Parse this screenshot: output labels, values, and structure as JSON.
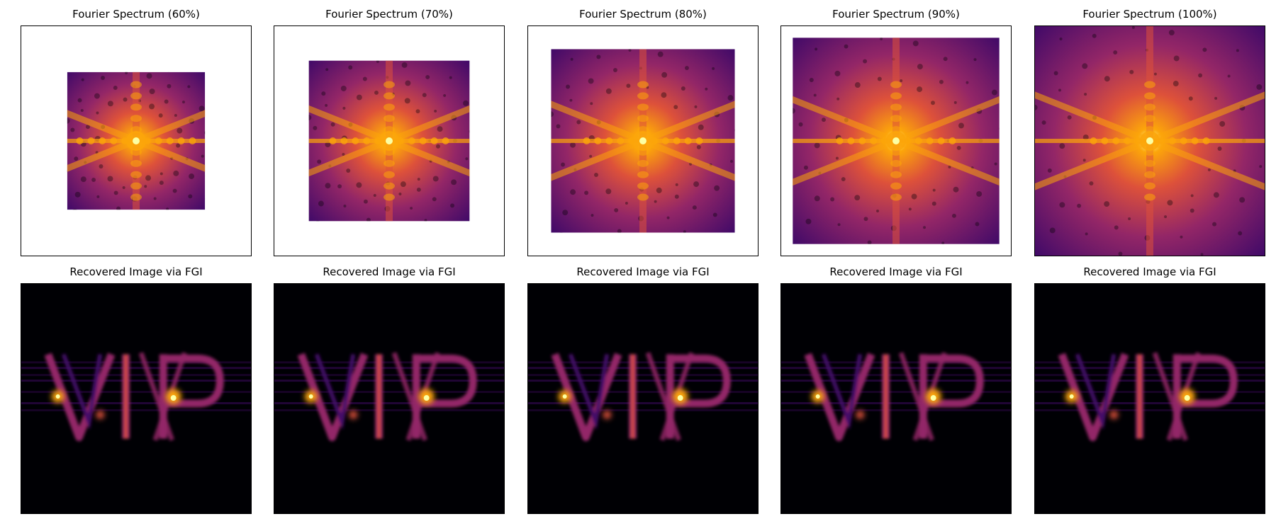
{
  "figure": {
    "columns": [
      {
        "spectrum": {
          "title": "Fourier Spectrum (60%)",
          "fraction": 0.6
        },
        "recovered": {
          "title": "Recovered Image via FGI"
        }
      },
      {
        "spectrum": {
          "title": "Fourier Spectrum (70%)",
          "fraction": 0.7
        },
        "recovered": {
          "title": "Recovered Image via FGI"
        }
      },
      {
        "spectrum": {
          "title": "Fourier Spectrum (80%)",
          "fraction": 0.8
        },
        "recovered": {
          "title": "Recovered Image via FGI"
        }
      },
      {
        "spectrum": {
          "title": "Fourier Spectrum (90%)",
          "fraction": 0.9
        },
        "recovered": {
          "title": "Recovered Image via FGI"
        }
      },
      {
        "spectrum": {
          "title": "Fourier Spectrum (100%)",
          "fraction": 1.0
        },
        "recovered": {
          "title": "Recovered Image via FGI"
        }
      }
    ],
    "colormap": [
      "#000004",
      "#420a68",
      "#932667",
      "#dd513a",
      "#fca50a",
      "#fcffa4"
    ],
    "recovered_text": "VIP"
  }
}
